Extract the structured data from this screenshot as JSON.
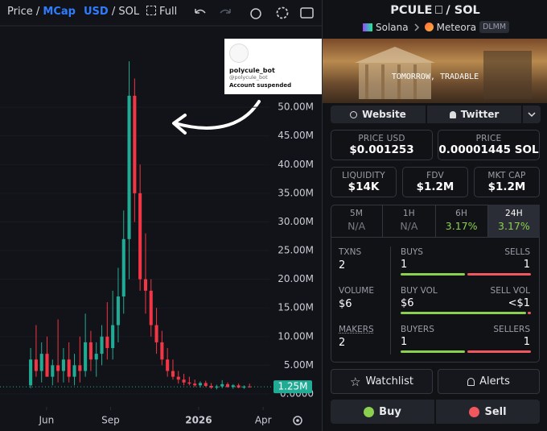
{
  "toolbar": {
    "price": "Price",
    "separator": "/",
    "mcap": "MCap",
    "usd": "USD",
    "sol": "SOL",
    "full": "Full"
  },
  "chart_data": {
    "type": "candlestick",
    "candles": [
      {
        "open": 1.5,
        "high": 8,
        "low": 1,
        "close": 6
      },
      {
        "open": 6,
        "high": 12,
        "low": 3,
        "close": 4
      },
      {
        "open": 4,
        "high": 9,
        "low": 2,
        "close": 7
      },
      {
        "open": 7,
        "high": 10,
        "low": 3,
        "close": 3
      },
      {
        "open": 3,
        "high": 6,
        "low": 1.5,
        "close": 5
      },
      {
        "open": 5,
        "high": 13,
        "low": 2,
        "close": 4
      },
      {
        "open": 4,
        "high": 8,
        "low": 2,
        "close": 6
      },
      {
        "open": 6,
        "high": 9,
        "low": 2,
        "close": 3
      },
      {
        "open": 3,
        "high": 7,
        "low": 1.5,
        "close": 5
      },
      {
        "open": 5,
        "high": 10,
        "low": 2,
        "close": 4
      },
      {
        "open": 4,
        "high": 14,
        "low": 3,
        "close": 9
      },
      {
        "open": 9,
        "high": 11,
        "low": 4,
        "close": 6
      },
      {
        "open": 6,
        "high": 9,
        "low": 3,
        "close": 7
      },
      {
        "open": 7,
        "high": 12,
        "low": 5,
        "close": 10
      },
      {
        "open": 10,
        "high": 16,
        "low": 6,
        "close": 8
      },
      {
        "open": 8,
        "high": 18,
        "low": 6,
        "close": 12
      },
      {
        "open": 12,
        "high": 22,
        "low": 9,
        "close": 17
      },
      {
        "open": 17,
        "high": 32,
        "low": 14,
        "close": 27
      },
      {
        "open": 27,
        "high": 58,
        "low": 20,
        "close": 52
      },
      {
        "open": 52,
        "high": 55,
        "low": 30,
        "close": 35
      },
      {
        "open": 35,
        "high": 40,
        "low": 18,
        "close": 20
      },
      {
        "open": 20,
        "high": 28,
        "low": 14,
        "close": 18
      },
      {
        "open": 18,
        "high": 20,
        "low": 10,
        "close": 12
      },
      {
        "open": 12,
        "high": 15,
        "low": 7,
        "close": 9
      },
      {
        "open": 9,
        "high": 11,
        "low": 5,
        "close": 6
      },
      {
        "open": 6,
        "high": 8,
        "low": 3,
        "close": 4
      },
      {
        "open": 4,
        "high": 6,
        "low": 2.5,
        "close": 3
      },
      {
        "open": 3,
        "high": 4,
        "low": 1.8,
        "close": 2.5
      },
      {
        "open": 2.5,
        "high": 3.5,
        "low": 1.5,
        "close": 2
      },
      {
        "open": 2,
        "high": 3,
        "low": 1.5,
        "close": 1.8
      },
      {
        "open": 1.8,
        "high": 2.5,
        "low": 1.2,
        "close": 1.5
      },
      {
        "open": 1.5,
        "high": 2.2,
        "low": 1.1,
        "close": 1.9
      },
      {
        "open": 1.9,
        "high": 2.3,
        "low": 1.2,
        "close": 1.4
      },
      {
        "open": 1.4,
        "high": 1.9,
        "low": 0.9,
        "close": 1.1
      },
      {
        "open": 1.1,
        "high": 1.6,
        "low": 0.8,
        "close": 1.3
      },
      {
        "open": 1.3,
        "high": 2.4,
        "low": 1,
        "close": 1.7
      },
      {
        "open": 1.7,
        "high": 2,
        "low": 1.1,
        "close": 1.2
      },
      {
        "open": 1.2,
        "high": 1.7,
        "low": 0.9,
        "close": 1.5
      },
      {
        "open": 1.5,
        "high": 1.8,
        "low": 1,
        "close": 1.1
      },
      {
        "open": 1.1,
        "high": 1.5,
        "low": 0.9,
        "close": 1.3
      },
      {
        "open": 1.3,
        "high": 1.8,
        "low": 1.1,
        "close": 1.25
      }
    ],
    "up_color": "#22ab94",
    "down_color": "#f23645",
    "xlim": [
      -5.6,
      53.2
    ],
    "xticks": [
      {
        "value": 2.9,
        "label": "Jun"
      },
      {
        "value": 14.6,
        "label": "Sep"
      },
      {
        "value": 30.7,
        "label": "2026"
      },
      {
        "value": 42.5,
        "label": "Apr"
      }
    ],
    "ylim": [
      -2.25,
      64.2
    ],
    "yticks": [
      {
        "value": 0,
        "label": "0.0000"
      },
      {
        "value": 5,
        "label": "5.00M"
      },
      {
        "value": 10,
        "label": "10.00M"
      },
      {
        "value": 15,
        "label": "15.00M"
      },
      {
        "value": 20,
        "label": "20.00M"
      },
      {
        "value": 25,
        "label": "25.00M"
      },
      {
        "value": 30,
        "label": "30.00M"
      },
      {
        "value": 35,
        "label": "35.00M"
      },
      {
        "value": 40,
        "label": "40.00M"
      },
      {
        "value": 45,
        "label": "45.00M"
      },
      {
        "value": 50,
        "label": "50.00M"
      }
    ],
    "last_price": {
      "value": 1.25,
      "label": "1.25M"
    }
  },
  "tweet_card": {
    "name": "polycule_bot",
    "handle": "@polycule_bot",
    "status": "Account suspended"
  },
  "token": {
    "symbol": "PCULE",
    "separator": "/",
    "quote": "SOL",
    "chain": "Solana",
    "dex": "Meteora",
    "dex_badge": "DLMM",
    "banner_text": "TOMORROW, TRADABLE",
    "website": "Website",
    "twitter": "Twitter",
    "price_usd_label": "PRICE USD",
    "price_usd": "$0.001253",
    "price_label": "PRICE",
    "price_sol": "0.00001445 SOL",
    "liquidity_label": "LIQUIDITY",
    "liquidity": "$14K",
    "fdv_label": "FDV",
    "fdv": "$1.2M",
    "mktcap_label": "MKT CAP",
    "mktcap": "$1.2M",
    "tabs": [
      {
        "label": "5M",
        "value": "N/A"
      },
      {
        "label": "1H",
        "value": "N/A"
      },
      {
        "label": "6H",
        "value": "3.17%"
      },
      {
        "label": "24H",
        "value": "3.17%"
      }
    ],
    "stats": {
      "txns_label": "TXNS",
      "txns": "2",
      "buys_label": "BUYS",
      "buys": "1",
      "sells_label": "SELLS",
      "sells": "1",
      "volume_label": "VOLUME",
      "volume": "$6",
      "buy_vol_label": "BUY VOL",
      "buy_vol": "$6",
      "sell_vol_label": "SELL VOL",
      "sell_vol": "<$1",
      "makers_label": "MAKERS",
      "makers": "2",
      "buyers_label": "BUYERS",
      "buyers": "1",
      "sellers_label": "SELLERS",
      "sellers": "1"
    },
    "watchlist": "Watchlist",
    "alerts": "Alerts",
    "buy": "Buy",
    "sell": "Sell"
  }
}
